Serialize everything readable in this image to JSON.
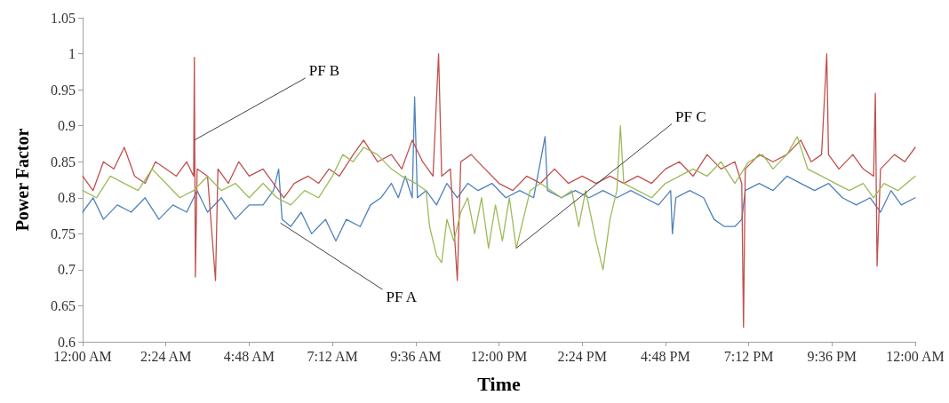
{
  "chart_data": {
    "type": "line",
    "xlabel": "Time",
    "ylabel": "Power Factor",
    "xlim": [
      0,
      24
    ],
    "ylim": [
      0.6,
      1.05
    ],
    "xticks": [
      {
        "value": 0,
        "label": "12:00 AM"
      },
      {
        "value": 2.4,
        "label": "2:24 AM"
      },
      {
        "value": 4.8,
        "label": "4:48 AM"
      },
      {
        "value": 7.2,
        "label": "7:12 AM"
      },
      {
        "value": 9.6,
        "label": "9:36 AM"
      },
      {
        "value": 12,
        "label": "12:00 PM"
      },
      {
        "value": 14.4,
        "label": "2:24 PM"
      },
      {
        "value": 16.8,
        "label": "4:48 PM"
      },
      {
        "value": 19.2,
        "label": "7:12 PM"
      },
      {
        "value": 21.6,
        "label": "9:36 PM"
      },
      {
        "value": 24,
        "label": "12:00 AM"
      }
    ],
    "yticks": [
      0.6,
      0.65,
      0.7,
      0.75,
      0.8,
      0.85,
      0.9,
      0.95,
      1,
      1.05
    ],
    "grid": false,
    "marker": "none",
    "line_style": "solid",
    "annotations": [
      {
        "text": "PF B",
        "x": 3.22,
        "y": 0.88
      },
      {
        "text": "PF A",
        "x": 5.7,
        "y": 0.765
      },
      {
        "text": "PF C",
        "x": 12.5,
        "y": 0.73
      }
    ],
    "series": [
      {
        "color": "#4f81bd",
        "x": [
          0,
          0.3,
          0.6,
          1,
          1.4,
          1.8,
          2.2,
          2.6,
          3,
          3.3,
          3.6,
          4,
          4.4,
          4.8,
          5.2,
          5.5,
          5.65,
          5.75,
          6,
          6.3,
          6.6,
          7,
          7.3,
          7.6,
          8,
          8.3,
          8.6,
          8.9,
          9.1,
          9.3,
          9.5,
          9.57,
          9.65,
          9.9,
          10.2,
          10.5,
          10.8,
          11.1,
          11.4,
          11.8,
          12.2,
          12.6,
          13,
          13.33,
          13.4,
          13.8,
          14.2,
          14.6,
          15,
          15.4,
          15.8,
          16.2,
          16.6,
          16.95,
          17,
          17.1,
          17.5,
          17.9,
          18.2,
          18.5,
          18.8,
          19,
          19.1,
          19.5,
          19.9,
          20.3,
          20.7,
          21.1,
          21.5,
          21.9,
          22.3,
          22.7,
          23,
          23.3,
          23.6,
          24
        ],
        "values": [
          0.78,
          0.8,
          0.77,
          0.79,
          0.78,
          0.8,
          0.77,
          0.79,
          0.78,
          0.81,
          0.78,
          0.8,
          0.77,
          0.79,
          0.79,
          0.81,
          0.84,
          0.77,
          0.76,
          0.78,
          0.75,
          0.77,
          0.74,
          0.77,
          0.76,
          0.79,
          0.8,
          0.82,
          0.8,
          0.83,
          0.8,
          0.94,
          0.8,
          0.81,
          0.79,
          0.82,
          0.8,
          0.82,
          0.81,
          0.82,
          0.8,
          0.81,
          0.8,
          0.885,
          0.81,
          0.8,
          0.81,
          0.8,
          0.81,
          0.8,
          0.81,
          0.8,
          0.79,
          0.81,
          0.75,
          0.8,
          0.81,
          0.8,
          0.77,
          0.76,
          0.76,
          0.77,
          0.81,
          0.82,
          0.81,
          0.83,
          0.82,
          0.81,
          0.82,
          0.8,
          0.79,
          0.8,
          0.78,
          0.81,
          0.79,
          0.8
        ]
      },
      {
        "color": "#c0504d",
        "x": [
          0,
          0.3,
          0.6,
          0.9,
          1.2,
          1.5,
          1.8,
          2.1,
          2.4,
          2.7,
          3,
          3.2,
          3.22,
          3.25,
          3.3,
          3.6,
          3.83,
          3.9,
          4.2,
          4.5,
          4.8,
          5.2,
          5.5,
          5.8,
          6.1,
          6.5,
          6.8,
          7.1,
          7.4,
          7.8,
          8.1,
          8.5,
          8.9,
          9.2,
          9.5,
          9.8,
          10.1,
          10.26,
          10.35,
          10.6,
          10.8,
          10.9,
          11.2,
          11.6,
          12,
          12.4,
          12.8,
          13.2,
          13.6,
          14,
          14.4,
          14.8,
          15.2,
          15.6,
          16,
          16.4,
          16.8,
          17.2,
          17.6,
          18,
          18.4,
          18.8,
          19,
          19.05,
          19.1,
          19.5,
          19.9,
          20.3,
          20.7,
          21,
          21.3,
          21.45,
          21.5,
          21.8,
          22.2,
          22.5,
          22.8,
          22.85,
          22.9,
          23,
          23.4,
          23.7,
          24
        ],
        "values": [
          0.83,
          0.81,
          0.85,
          0.84,
          0.87,
          0.83,
          0.82,
          0.85,
          0.84,
          0.83,
          0.85,
          0.83,
          0.995,
          0.69,
          0.84,
          0.83,
          0.685,
          0.84,
          0.82,
          0.85,
          0.83,
          0.84,
          0.82,
          0.8,
          0.82,
          0.83,
          0.82,
          0.84,
          0.83,
          0.86,
          0.88,
          0.85,
          0.86,
          0.84,
          0.88,
          0.85,
          0.83,
          1,
          0.83,
          0.84,
          0.685,
          0.85,
          0.86,
          0.84,
          0.82,
          0.81,
          0.83,
          0.82,
          0.84,
          0.82,
          0.83,
          0.82,
          0.83,
          0.82,
          0.83,
          0.82,
          0.84,
          0.85,
          0.83,
          0.86,
          0.84,
          0.85,
          0.82,
          0.62,
          0.84,
          0.86,
          0.85,
          0.86,
          0.88,
          0.85,
          0.86,
          1,
          0.86,
          0.84,
          0.86,
          0.84,
          0.83,
          0.945,
          0.705,
          0.84,
          0.86,
          0.85,
          0.87
        ]
      },
      {
        "color": "#9bbb59",
        "x": [
          0,
          0.4,
          0.8,
          1.2,
          1.6,
          2,
          2.4,
          2.8,
          3.2,
          3.6,
          4,
          4.4,
          4.8,
          5.2,
          5.6,
          6,
          6.4,
          6.8,
          7.2,
          7.5,
          7.8,
          8.1,
          8.5,
          8.9,
          9.2,
          9.6,
          9.9,
          10,
          10.2,
          10.35,
          10.5,
          10.7,
          10.9,
          11.1,
          11.3,
          11.5,
          11.7,
          11.9,
          12.1,
          12.3,
          12.5,
          12.7,
          12.9,
          13.2,
          13.5,
          13.8,
          14.1,
          14.3,
          14.5,
          14.8,
          15,
          15.2,
          15.4,
          15.5,
          15.6,
          16,
          16.4,
          16.8,
          17.2,
          17.6,
          18,
          18.4,
          18.8,
          19.2,
          19.6,
          19.9,
          20.3,
          20.6,
          20.9,
          21.3,
          21.7,
          22.1,
          22.5,
          22.8,
          23.1,
          23.5,
          24
        ],
        "values": [
          0.81,
          0.8,
          0.83,
          0.82,
          0.81,
          0.84,
          0.82,
          0.8,
          0.81,
          0.83,
          0.81,
          0.82,
          0.8,
          0.82,
          0.8,
          0.79,
          0.81,
          0.8,
          0.83,
          0.86,
          0.85,
          0.87,
          0.86,
          0.84,
          0.83,
          0.82,
          0.81,
          0.76,
          0.72,
          0.71,
          0.77,
          0.74,
          0.78,
          0.8,
          0.75,
          0.8,
          0.73,
          0.79,
          0.74,
          0.8,
          0.73,
          0.77,
          0.81,
          0.82,
          0.81,
          0.8,
          0.81,
          0.76,
          0.81,
          0.74,
          0.7,
          0.77,
          0.81,
          0.9,
          0.82,
          0.81,
          0.8,
          0.82,
          0.83,
          0.84,
          0.83,
          0.85,
          0.82,
          0.85,
          0.86,
          0.84,
          0.86,
          0.885,
          0.84,
          0.83,
          0.82,
          0.81,
          0.82,
          0.8,
          0.82,
          0.81,
          0.83
        ]
      }
    ]
  }
}
